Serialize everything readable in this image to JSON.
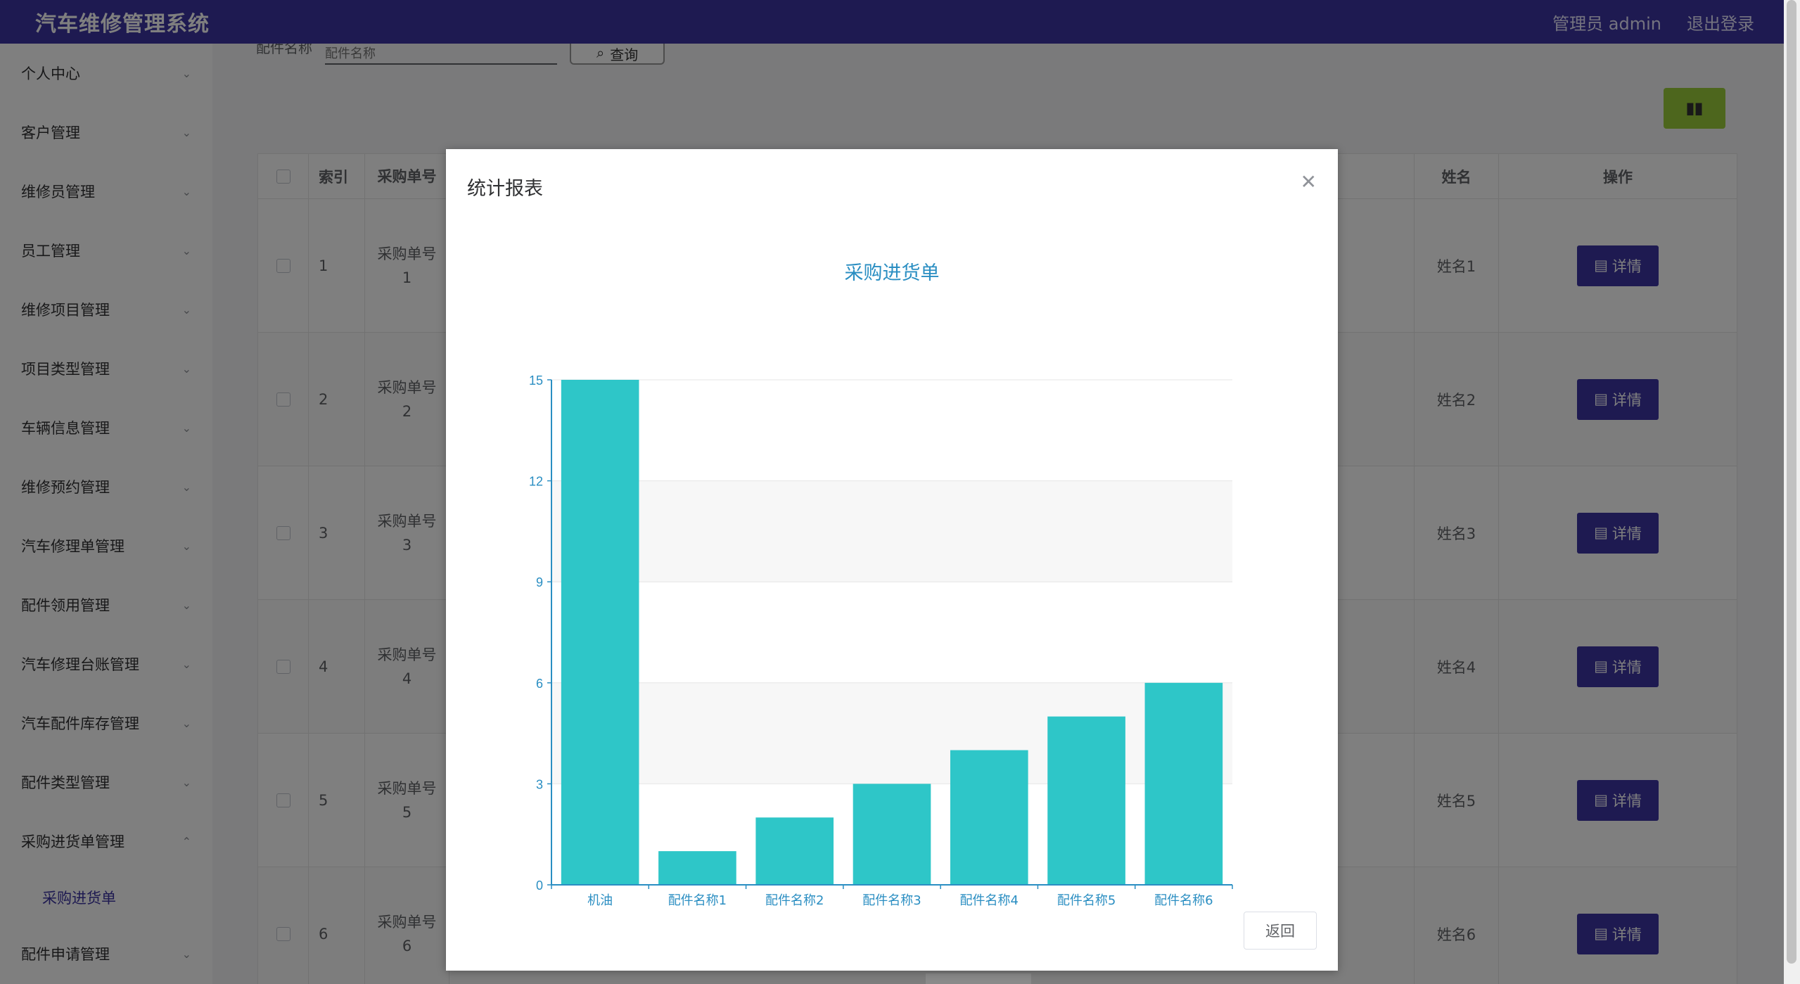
{
  "header": {
    "title": "汽车维修管理系统",
    "user": "管理员 admin",
    "logout": "退出登录"
  },
  "sidebar": {
    "items": [
      {
        "label": "个人中心"
      },
      {
        "label": "客户管理"
      },
      {
        "label": "维修员管理"
      },
      {
        "label": "员工管理"
      },
      {
        "label": "维修项目管理"
      },
      {
        "label": "项目类型管理"
      },
      {
        "label": "车辆信息管理"
      },
      {
        "label": "维修预约管理"
      },
      {
        "label": "汽车修理单管理"
      },
      {
        "label": "配件领用管理"
      },
      {
        "label": "汽车修理台账管理"
      },
      {
        "label": "汽车配件库存管理"
      },
      {
        "label": "配件类型管理"
      },
      {
        "label": "采购进货单管理"
      }
    ],
    "sub_item": "采购进货单",
    "last_item": "配件申请管理"
  },
  "search": {
    "label": "配件名称",
    "placeholder": "配件名称",
    "button": "查询"
  },
  "table": {
    "headers": {
      "index": "索引",
      "order": "采购单号",
      "name": "姓名",
      "op": "操作"
    },
    "rows": [
      {
        "index": "1",
        "order": "采购单号",
        "order_no": "1",
        "name": "姓名1"
      },
      {
        "index": "2",
        "order": "采购单号",
        "order_no": "2",
        "name": "姓名2"
      },
      {
        "index": "3",
        "order": "采购单号",
        "order_no": "3",
        "name": "姓名3"
      },
      {
        "index": "4",
        "order": "采购单号",
        "order_no": "4",
        "name": "姓名4"
      },
      {
        "index": "5",
        "order": "采购单号",
        "order_no": "5",
        "name": "姓名5"
      },
      {
        "index": "6",
        "order": "采购单号",
        "order_no": "6",
        "name": "姓名6"
      }
    ],
    "detail_label": "详情"
  },
  "dialog": {
    "title": "统计报表",
    "back": "返回"
  },
  "chart_data": {
    "type": "bar",
    "title": "采购进货单",
    "categories": [
      "机油",
      "配件名称1",
      "配件名称2",
      "配件名称3",
      "配件名称4",
      "配件名称5",
      "配件名称6"
    ],
    "values": [
      15,
      1,
      2,
      3,
      4,
      5,
      6
    ],
    "ylim": [
      0,
      15
    ],
    "yticks": [
      0,
      3,
      6,
      9,
      12,
      15
    ],
    "bar_color": "#2ec6c8",
    "axis_color": "#2a8ec2"
  }
}
